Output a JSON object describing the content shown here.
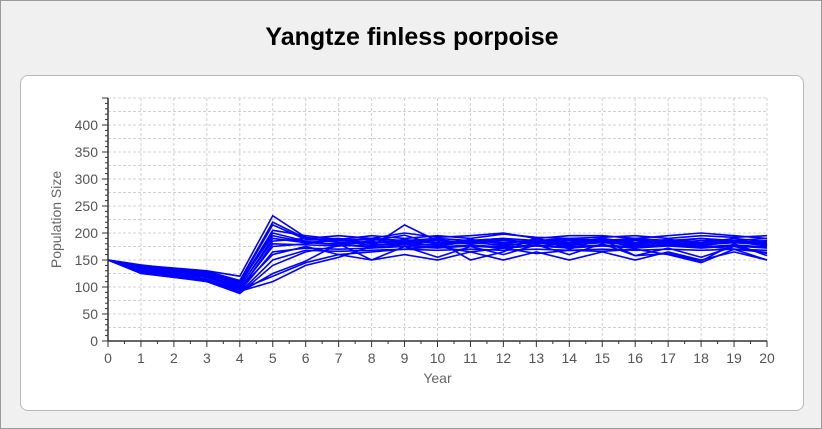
{
  "window": {
    "title": "Yangtze finless porpoise"
  },
  "chart_data": {
    "type": "line",
    "title": "Yangtze finless porpoise",
    "xlabel": "Year",
    "ylabel": "Population Size",
    "xlim": [
      0,
      20
    ],
    "ylim": [
      0,
      450
    ],
    "xticks": [
      0,
      1,
      2,
      3,
      4,
      5,
      6,
      7,
      8,
      9,
      10,
      11,
      12,
      13,
      14,
      15,
      16,
      17,
      18,
      19,
      20
    ],
    "yticks": [
      0,
      50,
      100,
      150,
      200,
      250,
      300,
      350,
      400
    ],
    "grid": true,
    "legend": "none",
    "series_color": "#0000ff",
    "x": [
      0,
      1,
      2,
      3,
      4,
      5,
      6,
      7,
      8,
      9,
      10,
      11,
      12,
      13,
      14,
      15,
      16,
      17,
      18,
      19,
      20
    ],
    "series": [
      {
        "values": [
          150,
          140,
          135,
          130,
          120,
          232,
          192,
          182,
          184,
          180,
          186,
          182,
          188,
          180,
          186,
          184,
          188,
          182,
          186,
          184,
          180
        ]
      },
      {
        "values": [
          150,
          138,
          130,
          128,
          110,
          215,
          188,
          190,
          180,
          188,
          180,
          188,
          180,
          188,
          182,
          190,
          182,
          188,
          182,
          190,
          184
        ]
      },
      {
        "values": [
          150,
          135,
          128,
          125,
          105,
          200,
          185,
          185,
          188,
          182,
          188,
          180,
          186,
          184,
          188,
          182,
          186,
          184,
          190,
          182,
          186
        ]
      },
      {
        "values": [
          150,
          132,
          125,
          120,
          100,
          190,
          182,
          180,
          182,
          185,
          182,
          186,
          182,
          186,
          180,
          186,
          180,
          186,
          180,
          186,
          182
        ]
      },
      {
        "values": [
          150,
          130,
          122,
          118,
          95,
          180,
          178,
          176,
          178,
          180,
          178,
          182,
          178,
          182,
          178,
          182,
          178,
          182,
          178,
          182,
          178
        ]
      },
      {
        "values": [
          150,
          128,
          120,
          115,
          92,
          165,
          172,
          170,
          172,
          175,
          172,
          176,
          172,
          176,
          172,
          176,
          172,
          176,
          172,
          176,
          172
        ]
      },
      {
        "values": [
          150,
          126,
          118,
          112,
          90,
          150,
          168,
          166,
          168,
          170,
          168,
          170,
          168,
          170,
          168,
          170,
          168,
          170,
          168,
          170,
          168
        ]
      },
      {
        "values": [
          150,
          125,
          118,
          110,
          88,
          140,
          165,
          176,
          186,
          196,
          178,
          186,
          190,
          176,
          182,
          186,
          174,
          180,
          176,
          170,
          164
        ]
      },
      {
        "values": [
          150,
          127,
          119,
          111,
          90,
          125,
          148,
          180,
          150,
          175,
          155,
          175,
          160,
          178,
          160,
          180,
          158,
          172,
          155,
          175,
          162
        ]
      },
      {
        "values": [
          150,
          129,
          121,
          113,
          95,
          120,
          145,
          160,
          165,
          170,
          175,
          165,
          172,
          162,
          168,
          166,
          170,
          160,
          145,
          170,
          150
        ]
      },
      {
        "values": [
          150,
          127,
          120,
          110,
          92,
          110,
          140,
          155,
          175,
          215,
          185,
          150,
          165,
          192,
          170,
          188,
          158,
          162,
          148,
          180,
          158
        ]
      },
      {
        "values": [
          150,
          133,
          126,
          122,
          98,
          160,
          175,
          160,
          150,
          160,
          150,
          165,
          150,
          165,
          150,
          165,
          150,
          165,
          150,
          165,
          150
        ]
      },
      {
        "values": [
          150,
          136,
          129,
          124,
          102,
          185,
          190,
          195,
          190,
          200,
          192,
          195,
          200,
          190,
          195,
          195,
          190,
          195,
          200,
          195,
          190
        ]
      },
      {
        "values": [
          150,
          139,
          132,
          127,
          106,
          205,
          195,
          188,
          195,
          190,
          195,
          190,
          198,
          192,
          190,
          192,
          195,
          190,
          195,
          192,
          195
        ]
      },
      {
        "values": [
          150,
          141,
          134,
          129,
          112,
          220,
          190,
          186,
          190,
          186,
          190,
          186,
          190,
          186,
          190,
          186,
          190,
          186,
          190,
          186,
          190
        ]
      },
      {
        "values": [
          150,
          137,
          130,
          126,
          108,
          195,
          183,
          178,
          174,
          178,
          174,
          178,
          174,
          178,
          174,
          178,
          174,
          178,
          174,
          178,
          174
        ]
      },
      {
        "values": [
          150,
          131,
          124,
          119,
          97,
          175,
          180,
          188,
          176,
          184,
          176,
          184,
          176,
          184,
          176,
          184,
          176,
          184,
          176,
          184,
          176
        ]
      }
    ]
  }
}
